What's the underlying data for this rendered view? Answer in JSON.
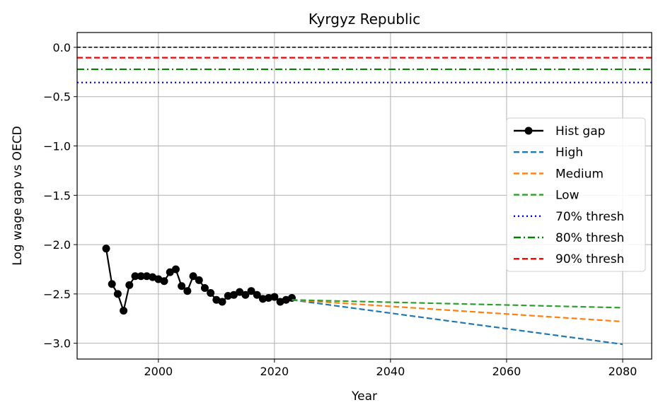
{
  "chart_data": {
    "type": "line",
    "title": "Kyrgyz Republic",
    "xlabel": "Year",
    "ylabel": "Log wage gap vs OECD",
    "xlim": [
      1986,
      2085
    ],
    "ylim": [
      -3.16,
      0.15
    ],
    "x_ticks": [
      2000,
      2020,
      2040,
      2060,
      2080
    ],
    "y_ticks": [
      0.0,
      -0.5,
      -1.0,
      -1.5,
      -2.0,
      -2.5,
      -3.0
    ],
    "x_tick_labels": [
      "2000",
      "2020",
      "2040",
      "2060",
      "2080"
    ],
    "y_tick_labels": [
      "0.0",
      "−0.5",
      "−1.0",
      "−1.5",
      "−2.0",
      "−2.5",
      "−3.0"
    ],
    "grid": true,
    "legend_position": "center-right",
    "reference_line": {
      "y": 0.0,
      "color": "#000000",
      "style": "dashed"
    },
    "series": [
      {
        "name": "Hist gap",
        "color": "#000000",
        "style": "solid-marker",
        "x": [
          1991,
          1992,
          1993,
          1994,
          1995,
          1996,
          1997,
          1998,
          1999,
          2000,
          2001,
          2002,
          2003,
          2004,
          2005,
          2006,
          2007,
          2008,
          2009,
          2010,
          2011,
          2012,
          2013,
          2014,
          2015,
          2016,
          2017,
          2018,
          2019,
          2020,
          2021,
          2022,
          2023
        ],
        "y": [
          -2.04,
          -2.4,
          -2.5,
          -2.67,
          -2.41,
          -2.32,
          -2.32,
          -2.32,
          -2.33,
          -2.35,
          -2.37,
          -2.28,
          -2.25,
          -2.42,
          -2.47,
          -2.32,
          -2.36,
          -2.44,
          -2.49,
          -2.56,
          -2.58,
          -2.52,
          -2.51,
          -2.48,
          -2.51,
          -2.47,
          -2.51,
          -2.55,
          -2.54,
          -2.53,
          -2.58,
          -2.56,
          -2.54
        ]
      },
      {
        "name": "High",
        "color": "#1f77b4",
        "style": "dashed",
        "x": [
          2023,
          2080
        ],
        "y": [
          -2.56,
          -3.01
        ]
      },
      {
        "name": "Medium",
        "color": "#ff7f0e",
        "style": "dashed",
        "x": [
          2023,
          2080
        ],
        "y": [
          -2.56,
          -2.78
        ]
      },
      {
        "name": "Low",
        "color": "#2ca02c",
        "style": "dashed",
        "x": [
          2023,
          2080
        ],
        "y": [
          -2.56,
          -2.64
        ]
      },
      {
        "name": "70% thresh",
        "color": "#0000ff",
        "style": "dotted",
        "hline": -0.357
      },
      {
        "name": "80% thresh",
        "color": "#008000",
        "style": "dashdot",
        "hline": -0.223
      },
      {
        "name": "90% thresh",
        "color": "#ff0000",
        "style": "dashed",
        "hline": -0.105
      }
    ]
  }
}
